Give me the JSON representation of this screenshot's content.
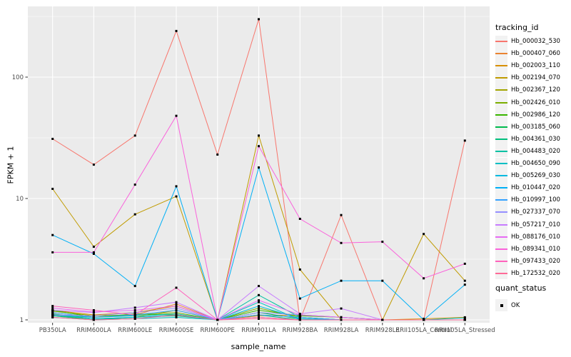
{
  "figure": {
    "background": "#FFFFFF",
    "panel_background": "#EBEBEB",
    "grid_color": "#FFFFFF",
    "tick_mark_color": "#333333",
    "tick_label_color": "#4D4D4D",
    "point_color": "#000000",
    "legend_key_background": "#F2F2F2"
  },
  "axes": {
    "x_title": "sample_name",
    "y_title": "FPKM + 1",
    "y_tick_labels": [
      "1",
      "10",
      "100"
    ]
  },
  "legend": {
    "color_title": "tracking_id",
    "shape_title": "quant_status",
    "shape_items": [
      {
        "label": "OK"
      }
    ]
  },
  "chart_data": {
    "type": "line",
    "xlabel": "sample_name",
    "ylabel": "FPKM + 1",
    "yscale": "log10",
    "yticks": [
      1,
      10,
      100
    ],
    "ylim": [
      0.95,
      380
    ],
    "grid": true,
    "legend_position": "right",
    "x": [
      "PB350LA",
      "RRIM600LA",
      "RRIM600LE",
      "RRIM600SE",
      "RRIM600PE",
      "RRIM901LA",
      "RRIM928BA",
      "RRIM928LA",
      "RRIM928LE",
      "RRII105LA_Control",
      "RRII105LA_Stressed"
    ],
    "point_shape_label": "OK",
    "series": [
      {
        "name": "Hb_000032_530",
        "color": "#F8766D",
        "values": [
          31,
          19,
          33,
          240,
          23,
          300,
          1.0,
          7.3,
          1.0,
          1.0,
          30
        ]
      },
      {
        "name": "Hb_000407_060",
        "color": "#EA8331",
        "values": [
          1.15,
          1.05,
          1.1,
          1.35,
          1.0,
          1.1,
          1.05,
          1.0,
          1.0,
          1.0,
          1.0
        ]
      },
      {
        "name": "Hb_002003_110",
        "color": "#D89000",
        "values": [
          1.2,
          1.1,
          1.15,
          1.3,
          1.0,
          1.08,
          1.1,
          1.05,
          1.0,
          1.02,
          1.05
        ]
      },
      {
        "name": "Hb_002194_070",
        "color": "#C09B00",
        "values": [
          12,
          4.0,
          7.4,
          10.4,
          1.0,
          33,
          2.6,
          1.0,
          1.0,
          5.1,
          2.1
        ]
      },
      {
        "name": "Hb_002367_120",
        "color": "#A3A500",
        "values": [
          1.1,
          1.0,
          1.05,
          1.2,
          1.0,
          1.05,
          1.0,
          1.0,
          1.0,
          1.0,
          1.0
        ]
      },
      {
        "name": "Hb_002426_010",
        "color": "#7CAE00",
        "values": [
          1.18,
          1.08,
          1.1,
          1.15,
          1.0,
          1.25,
          1.05,
          1.0,
          1.0,
          1.0,
          1.0
        ]
      },
      {
        "name": "Hb_002986_120",
        "color": "#39B600",
        "values": [
          1.2,
          1.05,
          1.12,
          1.1,
          1.0,
          1.2,
          1.08,
          1.05,
          1.0,
          1.0,
          1.0
        ]
      },
      {
        "name": "Hb_003185_060",
        "color": "#00BB4E",
        "values": [
          1.12,
          1.02,
          1.05,
          1.1,
          1.0,
          1.15,
          1.02,
          1.0,
          1.0,
          1.0,
          1.0
        ]
      },
      {
        "name": "Hb_004361_030",
        "color": "#00BF7D",
        "values": [
          1.08,
          1.0,
          1.05,
          1.08,
          1.0,
          1.1,
          1.0,
          1.0,
          1.0,
          1.0,
          1.0
        ]
      },
      {
        "name": "Hb_004483_020",
        "color": "#00C1A3",
        "values": [
          1.1,
          1.05,
          1.08,
          1.12,
          1.0,
          1.6,
          1.05,
          1.0,
          1.0,
          1.0,
          1.0
        ]
      },
      {
        "name": "Hb_004650_090",
        "color": "#00BFC4",
        "values": [
          1.05,
          1.0,
          1.02,
          1.05,
          1.0,
          1.4,
          1.0,
          1.0,
          1.0,
          1.0,
          1.04
        ]
      },
      {
        "name": "Hb_005269_030",
        "color": "#00BAE0",
        "values": [
          1.1,
          1.02,
          1.05,
          1.1,
          1.0,
          1.3,
          1.02,
          1.0,
          1.0,
          1.0,
          1.0
        ]
      },
      {
        "name": "Hb_010447_020",
        "color": "#00B0F6",
        "values": [
          5.0,
          3.5,
          1.9,
          12.6,
          1.0,
          18,
          1.5,
          2.1,
          2.1,
          1.0,
          1.95
        ]
      },
      {
        "name": "Hb_010997_100",
        "color": "#35A2FF",
        "values": [
          1.15,
          1.05,
          1.1,
          1.2,
          1.0,
          1.1,
          1.05,
          1.0,
          1.0,
          1.0,
          1.0
        ]
      },
      {
        "name": "Hb_027337_070",
        "color": "#9590FF",
        "values": [
          1.1,
          1.08,
          1.15,
          1.25,
          1.0,
          1.15,
          1.1,
          1.05,
          1.0,
          1.0,
          1.0
        ]
      },
      {
        "name": "Hb_057217_010",
        "color": "#C77CFF",
        "values": [
          1.2,
          1.15,
          1.26,
          1.4,
          1.0,
          1.9,
          1.12,
          1.24,
          1.0,
          1.0,
          1.0
        ]
      },
      {
        "name": "Hb_088176_010",
        "color": "#E76BF3",
        "values": [
          1.25,
          1.16,
          1.2,
          1.3,
          1.0,
          1.45,
          1.1,
          1.05,
          1.0,
          1.0,
          1.0
        ]
      },
      {
        "name": "Hb_089341_010",
        "color": "#FA62DB",
        "values": [
          3.6,
          3.6,
          13,
          48,
          1.0,
          27,
          6.8,
          4.3,
          4.4,
          2.2,
          2.9
        ]
      },
      {
        "name": "Hb_097433_020",
        "color": "#FF62BC",
        "values": [
          1.3,
          1.2,
          1.1,
          1.84,
          1.0,
          1.05,
          1.0,
          1.0,
          1.0,
          1.0,
          1.0
        ]
      },
      {
        "name": "Hb_172532_020",
        "color": "#FF6A98",
        "values": [
          1.05,
          1.0,
          1.02,
          1.1,
          1.0,
          1.02,
          1.0,
          1.0,
          1.0,
          1.0,
          1.0
        ]
      }
    ]
  }
}
